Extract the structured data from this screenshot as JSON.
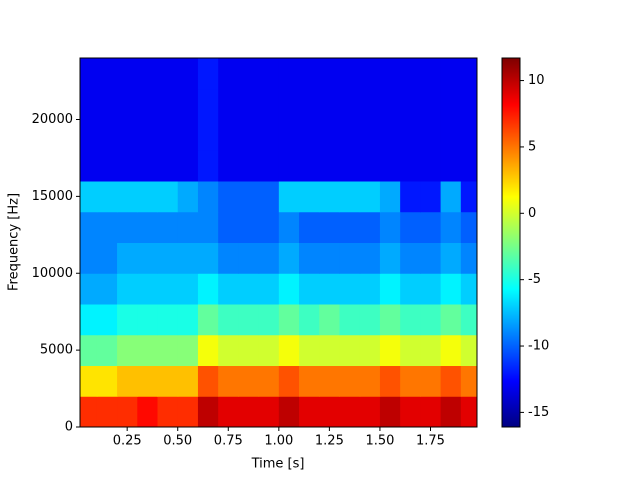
{
  "chart_data": {
    "type": "spectrogram",
    "colormap": "jet",
    "xlabel": "Time [s]",
    "ylabel": "Frequency [Hz]",
    "xlim": [
      0.0167,
      1.98
    ],
    "ylim": [
      0,
      24000
    ],
    "clim": [
      -16.1,
      11.7
    ],
    "xticks": [
      0.25,
      {
        "value": 0.5,
        "label": "0.50"
      },
      0.75,
      {
        "value": 1,
        "label": "1.00"
      },
      1.25,
      {
        "value": 1.5,
        "label": "1.50"
      },
      1.75
    ],
    "yticks": [
      0,
      5000,
      10000,
      15000,
      20000
    ],
    "cticks": [
      -15,
      -10,
      -5,
      0,
      5,
      10
    ],
    "x": [
      0.05,
      0.15,
      0.25,
      0.35,
      0.45,
      0.55,
      0.65,
      0.75,
      0.85,
      0.95,
      1.05,
      1.15,
      1.25,
      1.35,
      1.45,
      1.55,
      1.65,
      1.75,
      1.85,
      1.95
    ],
    "y": [
      1000,
      3000,
      5000,
      7000,
      9000,
      11000,
      13000,
      15000,
      17000,
      19000,
      21000,
      23000
    ],
    "values": [
      [
        7,
        7,
        7,
        8,
        7,
        7,
        10,
        9,
        9,
        9,
        10,
        9,
        9,
        9,
        9,
        10,
        9,
        9,
        10,
        9
      ],
      [
        2,
        2,
        3,
        3,
        3,
        3,
        6,
        5,
        5,
        5,
        6,
        5,
        5,
        5,
        5,
        6,
        5,
        5,
        6,
        5
      ],
      [
        -3,
        -3,
        -2,
        -2,
        -2,
        -2,
        1,
        0,
        0,
        0,
        1,
        0,
        0,
        0,
        0,
        1,
        0,
        0,
        1,
        0
      ],
      [
        -6,
        -6,
        -5,
        -5,
        -5,
        -5,
        -3,
        -4,
        -4,
        -4,
        -3,
        -4,
        -3,
        -4,
        -4,
        -3,
        -4,
        -4,
        -3,
        -4
      ],
      [
        -8,
        -8,
        -7,
        -7,
        -7,
        -7,
        -6,
        -7,
        -7,
        -7,
        -6,
        -7,
        -7,
        -7,
        -7,
        -6,
        -7,
        -7,
        -6,
        -7
      ],
      [
        -9,
        -9,
        -8,
        -8,
        -8,
        -8,
        -8,
        -9,
        -9,
        -9,
        -8,
        -9,
        -9,
        -9,
        -9,
        -8,
        -9,
        -9,
        -8,
        -9
      ],
      [
        -9,
        -9,
        -9,
        -9,
        -9,
        -9,
        -9,
        -10,
        -10,
        -10,
        -9,
        -10,
        -10,
        -10,
        -10,
        -9,
        -10,
        -10,
        -9,
        -10
      ],
      [
        -7,
        -7,
        -7,
        -7,
        -7,
        -8,
        -9,
        -10,
        -10,
        -10,
        -7,
        -7,
        -7,
        -7,
        -7,
        -8,
        -12,
        -12,
        -8,
        -12
      ],
      [
        -13,
        -13,
        -13,
        -13,
        -13,
        -13,
        -12,
        -13,
        -13,
        -13,
        -13,
        -13,
        -13,
        -13,
        -13,
        -13,
        -13,
        -13,
        -13,
        -13
      ],
      [
        -13,
        -13,
        -13,
        -13,
        -13,
        -13,
        -12,
        -13,
        -13,
        -13,
        -13,
        -13,
        -13,
        -13,
        -13,
        -13,
        -13,
        -13,
        -13,
        -13
      ],
      [
        -13,
        -13,
        -13,
        -13,
        -13,
        -13,
        -12,
        -13,
        -13,
        -13,
        -13,
        -13,
        -13,
        -13,
        -13,
        -13,
        -13,
        -13,
        -13,
        -13
      ],
      [
        -13,
        -13,
        -13,
        -13,
        -13,
        -13,
        -12,
        -13,
        -13,
        -13,
        -13,
        -13,
        -13,
        -13,
        -13,
        -13,
        -13,
        -13,
        -13,
        -13
      ]
    ]
  }
}
